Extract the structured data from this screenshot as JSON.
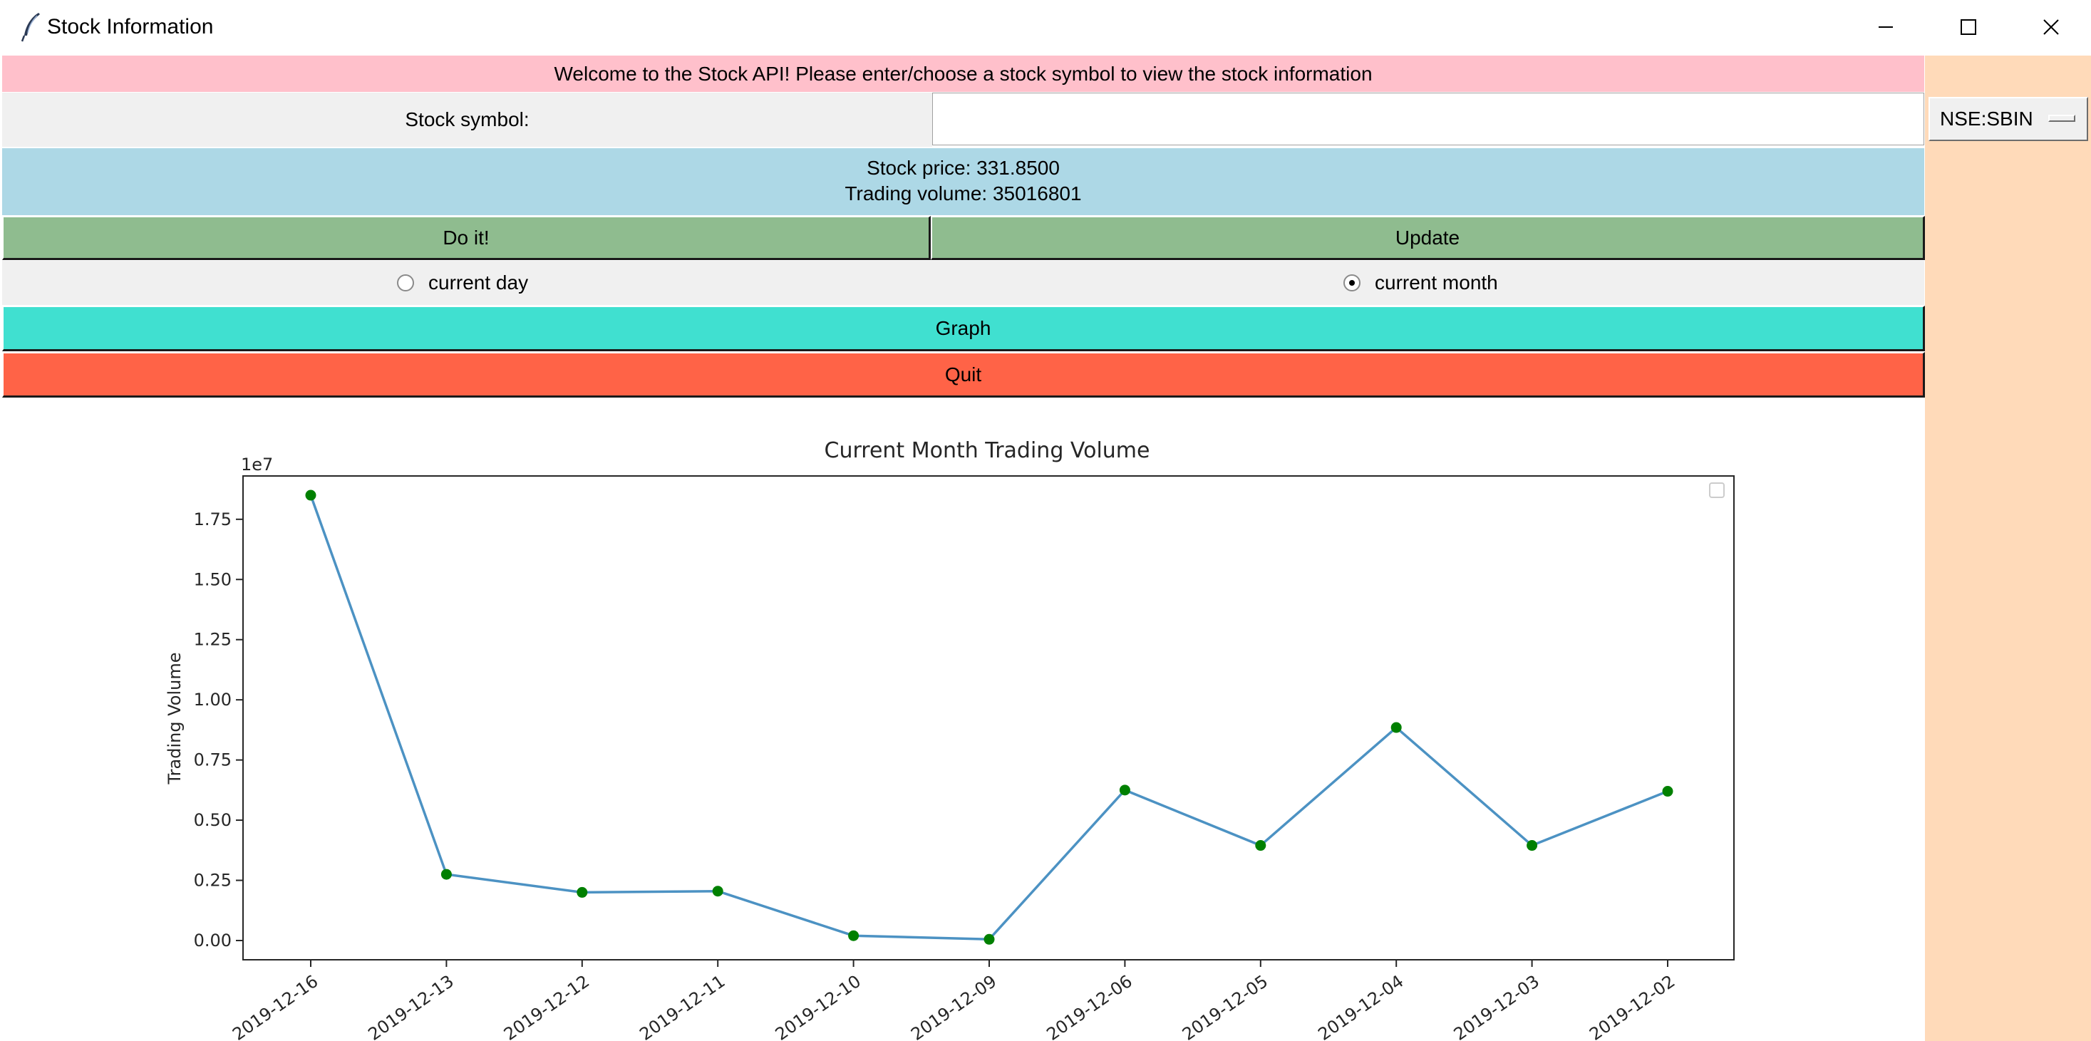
{
  "window": {
    "title": "Stock Information",
    "minimize_icon": "minimize-icon",
    "maximize_icon": "maximize-icon",
    "close_icon": "close-icon"
  },
  "banner": {
    "text": "Welcome to the Stock API! Please enter/choose a stock symbol to view the stock information"
  },
  "symbol": {
    "label": "Stock symbol:",
    "input_value": "",
    "selected_option": "NSE:SBIN"
  },
  "info": {
    "price_line": "Stock price: 331.8500",
    "volume_line": "Trading volume: 35016801"
  },
  "buttons": {
    "do_it": "Do it!",
    "update": "Update",
    "graph": "Graph",
    "quit": "Quit"
  },
  "radios": {
    "day_label": "current day",
    "month_label": "current month",
    "selected": "month"
  },
  "colors": {
    "banner": "#ffc0cb",
    "right_pane": "#ffdab9",
    "info_panel": "#add8e6",
    "action_buttons": "#8fbc8f",
    "graph_button": "#40e0d0",
    "quit_button": "#ff6347",
    "line": "#4c92c3",
    "markers": "#008000"
  },
  "chart_data": {
    "type": "line",
    "title": "Current Month Trading Volume",
    "xlabel": "",
    "ylabel": "Trading Volume",
    "y_offset_label": "1e7",
    "categories": [
      "2019-12-16",
      "2019-12-13",
      "2019-12-12",
      "2019-12-11",
      "2019-12-10",
      "2019-12-09",
      "2019-12-06",
      "2019-12-05",
      "2019-12-04",
      "2019-12-03",
      "2019-12-02"
    ],
    "values": [
      1.85,
      0.275,
      0.2,
      0.205,
      0.02,
      0.005,
      0.625,
      0.395,
      0.885,
      0.395,
      0.62
    ],
    "ylim": [
      -0.08,
      1.93
    ],
    "yticks": [
      0.0,
      0.25,
      0.5,
      0.75,
      1.0,
      1.25,
      1.5,
      1.75
    ],
    "ytick_labels": [
      "0.00",
      "0.25",
      "0.50",
      "0.75",
      "1.00",
      "1.25",
      "1.50",
      "1.75"
    ],
    "grid": false,
    "legend": "top-right (empty)"
  }
}
